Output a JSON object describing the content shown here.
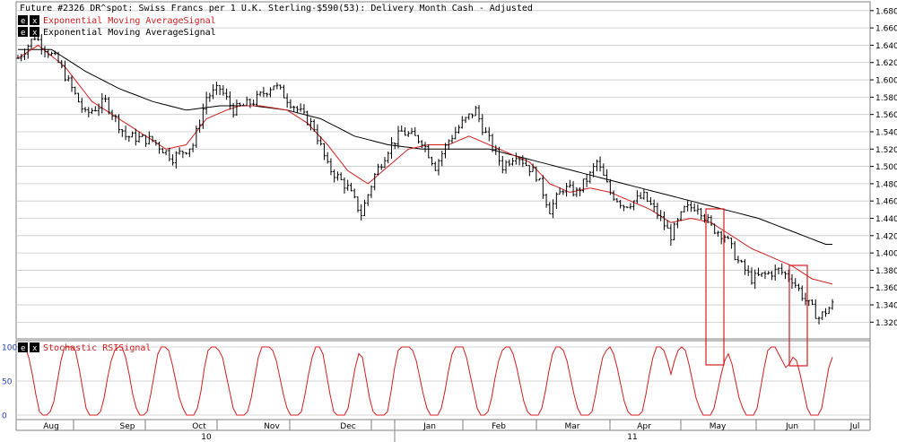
{
  "colors": {
    "background": "#ffffff",
    "grid": "#c8c8c8",
    "price": "#000000",
    "ema_fast": "#d21e1e",
    "ema_slow": "#000000",
    "stoch": "#d21e1e",
    "highlight": "#d21e1e",
    "axis_text": "#000000",
    "stoch_axis_text": "#1f3fbf"
  },
  "icons": {
    "e_button": "e",
    "x_button": "x"
  },
  "chart_data": [
    {
      "type": "ohlc",
      "title": "Future #2326 DR^spot: Swiss Francs per 1 U.K. Sterling-$590(53): Delivery Month Cash -  Adjusted",
      "legend": [
        {
          "name": "Exponential Moving AverageSignal",
          "color": "#d21e1e"
        },
        {
          "name": "Exponential Moving AverageSignal",
          "color": "#000000"
        }
      ],
      "ylim": [
        1.31,
        1.685
      ],
      "y_ticks": [
        "1.6800",
        "1.6600",
        "1.6400",
        "1.6200",
        "1.6000",
        "1.5800",
        "1.5600",
        "1.5400",
        "1.5200",
        "1.5000",
        "1.4800",
        "1.4600",
        "1.4400",
        "1.4200",
        "1.4000",
        "1.3800",
        "1.3600",
        "1.3400",
        "1.3200"
      ],
      "grid": true,
      "price_anchors": [
        [
          0,
          1.625
        ],
        [
          5,
          1.65
        ],
        [
          12,
          1.62
        ],
        [
          20,
          1.56
        ],
        [
          26,
          1.575
        ],
        [
          32,
          1.535
        ],
        [
          40,
          1.53
        ],
        [
          46,
          1.51
        ],
        [
          52,
          1.525
        ],
        [
          56,
          1.58
        ],
        [
          60,
          1.59
        ],
        [
          64,
          1.565
        ],
        [
          70,
          1.575
        ],
        [
          76,
          1.595
        ],
        [
          82,
          1.57
        ],
        [
          88,
          1.545
        ],
        [
          92,
          1.5
        ],
        [
          98,
          1.475
        ],
        [
          102,
          1.445
        ],
        [
          106,
          1.49
        ],
        [
          110,
          1.52
        ],
        [
          114,
          1.54
        ],
        [
          120,
          1.53
        ],
        [
          124,
          1.5
        ],
        [
          128,
          1.53
        ],
        [
          132,
          1.55
        ],
        [
          136,
          1.565
        ],
        [
          138,
          1.545
        ],
        [
          140,
          1.53
        ],
        [
          144,
          1.5
        ],
        [
          148,
          1.515
        ],
        [
          154,
          1.49
        ],
        [
          158,
          1.45
        ],
        [
          162,
          1.475
        ],
        [
          166,
          1.47
        ],
        [
          170,
          1.49
        ],
        [
          172,
          1.505
        ],
        [
          176,
          1.47
        ],
        [
          180,
          1.455
        ],
        [
          186,
          1.465
        ],
        [
          190,
          1.445
        ],
        [
          194,
          1.42
        ],
        [
          198,
          1.45
        ],
        [
          202,
          1.455
        ],
        [
          206,
          1.43
        ],
        [
          210,
          1.42
        ],
        [
          214,
          1.39
        ],
        [
          218,
          1.37
        ],
        [
          222,
          1.375
        ],
        [
          226,
          1.38
        ],
        [
          230,
          1.37
        ],
        [
          234,
          1.345
        ],
        [
          238,
          1.325
        ],
        [
          242,
          1.34
        ]
      ],
      "ema_fast_anchors": [
        [
          0,
          1.625
        ],
        [
          6,
          1.64
        ],
        [
          14,
          1.615
        ],
        [
          22,
          1.575
        ],
        [
          30,
          1.555
        ],
        [
          38,
          1.535
        ],
        [
          44,
          1.52
        ],
        [
          50,
          1.525
        ],
        [
          56,
          1.555
        ],
        [
          62,
          1.565
        ],
        [
          66,
          1.57
        ],
        [
          72,
          1.57
        ],
        [
          80,
          1.565
        ],
        [
          86,
          1.55
        ],
        [
          92,
          1.525
        ],
        [
          98,
          1.495
        ],
        [
          104,
          1.48
        ],
        [
          110,
          1.5
        ],
        [
          116,
          1.52
        ],
        [
          122,
          1.525
        ],
        [
          128,
          1.525
        ],
        [
          134,
          1.535
        ],
        [
          140,
          1.525
        ],
        [
          146,
          1.515
        ],
        [
          152,
          1.505
        ],
        [
          158,
          1.48
        ],
        [
          164,
          1.47
        ],
        [
          170,
          1.475
        ],
        [
          176,
          1.47
        ],
        [
          182,
          1.46
        ],
        [
          188,
          1.45
        ],
        [
          194,
          1.435
        ],
        [
          200,
          1.44
        ],
        [
          206,
          1.435
        ],
        [
          212,
          1.42
        ],
        [
          218,
          1.405
        ],
        [
          224,
          1.395
        ],
        [
          230,
          1.385
        ],
        [
          236,
          1.37
        ],
        [
          242,
          1.364
        ]
      ],
      "ema_slow_anchors": [
        [
          0,
          1.635
        ],
        [
          10,
          1.635
        ],
        [
          20,
          1.61
        ],
        [
          30,
          1.59
        ],
        [
          40,
          1.575
        ],
        [
          50,
          1.565
        ],
        [
          60,
          1.57
        ],
        [
          70,
          1.57
        ],
        [
          80,
          1.565
        ],
        [
          90,
          1.555
        ],
        [
          100,
          1.535
        ],
        [
          110,
          1.525
        ],
        [
          120,
          1.52
        ],
        [
          130,
          1.52
        ],
        [
          140,
          1.52
        ],
        [
          150,
          1.51
        ],
        [
          160,
          1.5
        ],
        [
          170,
          1.49
        ],
        [
          180,
          1.48
        ],
        [
          190,
          1.47
        ],
        [
          200,
          1.46
        ],
        [
          210,
          1.45
        ],
        [
          220,
          1.44
        ],
        [
          230,
          1.425
        ],
        [
          240,
          1.41
        ]
      ],
      "bars": 243
    },
    {
      "type": "line",
      "name": "Stochastic RSISignal",
      "ylim": [
        0,
        100
      ],
      "y_ticks": [
        "100",
        "50",
        "0"
      ],
      "values": [
        95,
        100,
        100,
        85,
        60,
        30,
        5,
        0,
        0,
        5,
        20,
        50,
        80,
        100,
        100,
        100,
        95,
        70,
        40,
        10,
        0,
        0,
        0,
        5,
        25,
        55,
        80,
        95,
        100,
        100,
        85,
        60,
        30,
        10,
        0,
        0,
        5,
        30,
        60,
        90,
        100,
        100,
        95,
        75,
        50,
        25,
        10,
        0,
        0,
        0,
        10,
        35,
        70,
        95,
        100,
        100,
        95,
        85,
        60,
        35,
        10,
        0,
        0,
        0,
        5,
        25,
        55,
        85,
        100,
        100,
        100,
        95,
        80,
        55,
        30,
        10,
        0,
        0,
        0,
        5,
        30,
        60,
        85,
        100,
        100,
        90,
        60,
        30,
        5,
        0,
        0,
        0,
        10,
        40,
        70,
        90,
        85,
        55,
        25,
        5,
        0,
        0,
        0,
        5,
        35,
        70,
        95,
        100,
        100,
        100,
        95,
        80,
        55,
        30,
        10,
        0,
        0,
        0,
        10,
        35,
        65,
        90,
        100,
        100,
        100,
        85,
        60,
        35,
        10,
        0,
        0,
        5,
        25,
        55,
        80,
        95,
        100,
        100,
        90,
        70,
        45,
        20,
        5,
        0,
        0,
        0,
        10,
        35,
        65,
        90,
        100,
        100,
        95,
        80,
        55,
        30,
        10,
        0,
        0,
        0,
        5,
        30,
        60,
        85,
        95,
        100,
        90,
        70,
        45,
        20,
        5,
        0,
        0,
        0,
        5,
        30,
        60,
        85,
        100,
        100,
        95,
        80,
        60,
        80,
        95,
        100,
        95,
        75,
        50,
        25,
        10,
        0,
        0,
        0,
        10,
        35,
        60,
        80,
        90,
        75,
        50,
        25,
        10,
        0,
        0,
        0,
        10,
        40,
        70,
        95,
        100,
        100,
        90,
        80,
        70,
        75,
        85,
        80,
        60,
        35,
        10,
        0,
        0,
        0,
        10,
        40,
        70,
        85
      ],
      "grid": true
    }
  ],
  "x_axis": {
    "months": [
      "Aug",
      "Sep",
      "Oct",
      "Nov",
      "Dec",
      "Jan",
      "Feb",
      "Mar",
      "Apr",
      "May",
      "Jun",
      "Jul"
    ],
    "years": [
      "10",
      "11"
    ]
  }
}
